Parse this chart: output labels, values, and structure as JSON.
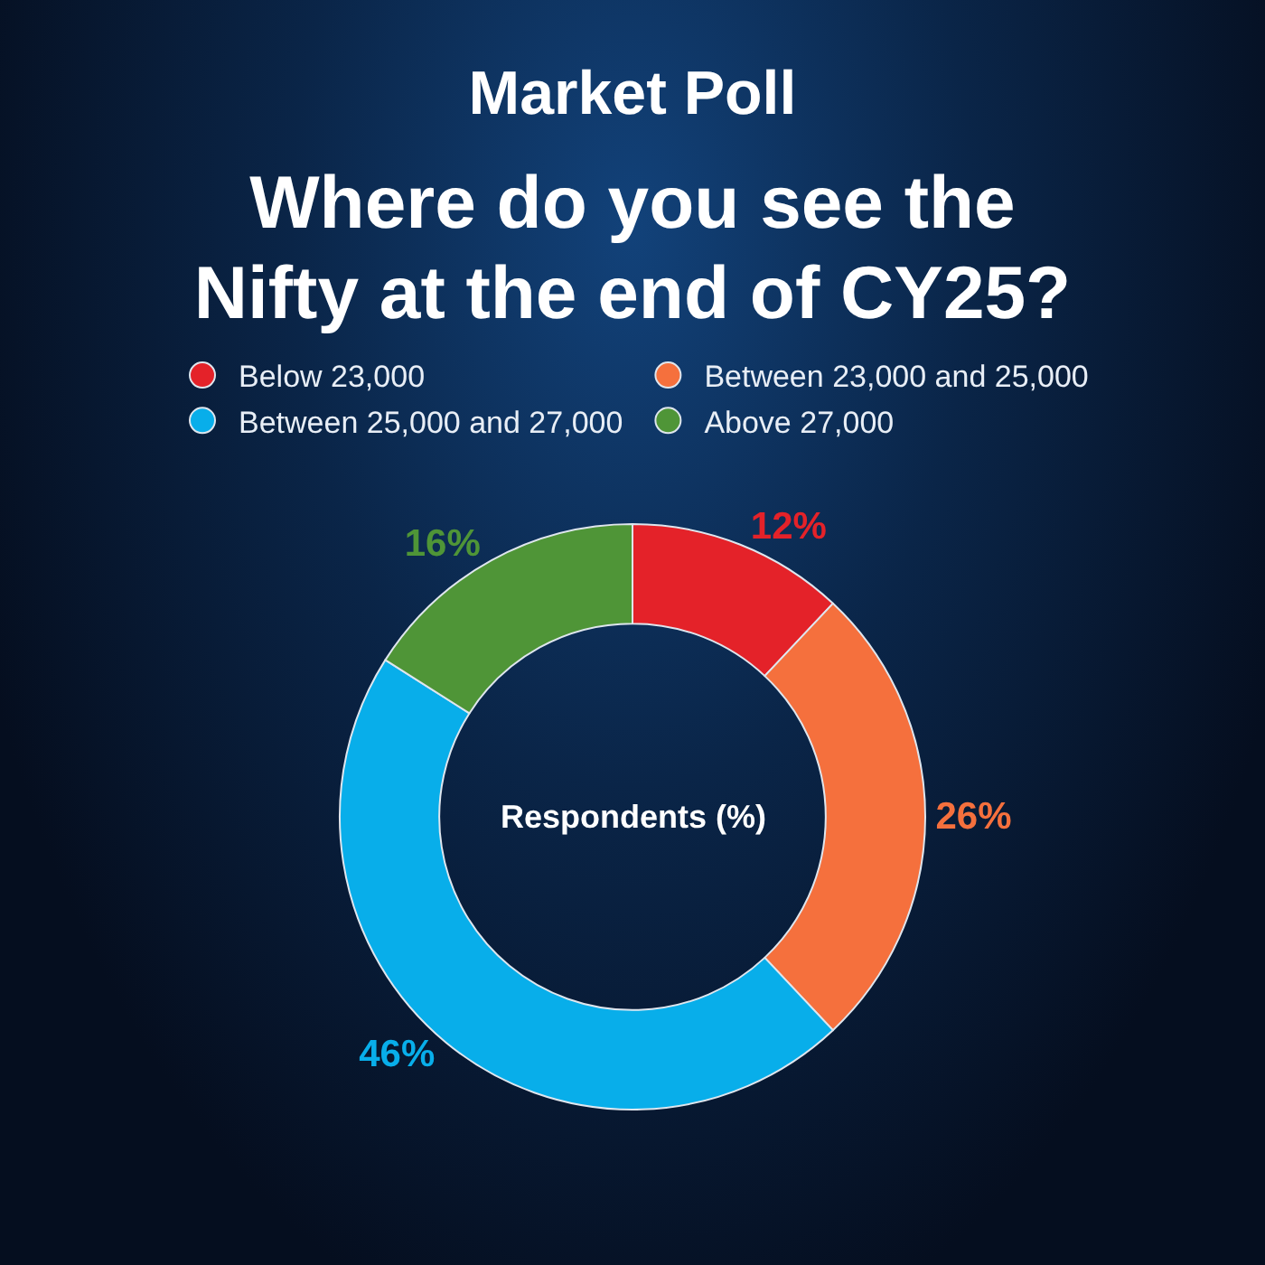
{
  "chart_data": {
    "type": "donut",
    "title": "Market Poll",
    "subtitle": "Where do you see the Nifty at the end of CY25?",
    "categories": [
      "Below 23,000",
      "Between 23,000 and 25,000",
      "Between 25,000 and 27,000",
      "Above 27,000"
    ],
    "values": [
      12,
      26,
      46,
      16
    ],
    "colors": [
      "#e42229",
      "#f5703d",
      "#08aeea",
      "#4f9537"
    ],
    "value_labels": [
      "12%",
      "26%",
      "46%",
      "16%"
    ],
    "annotations": [
      "Respondents (%)"
    ],
    "legend": "top"
  }
}
